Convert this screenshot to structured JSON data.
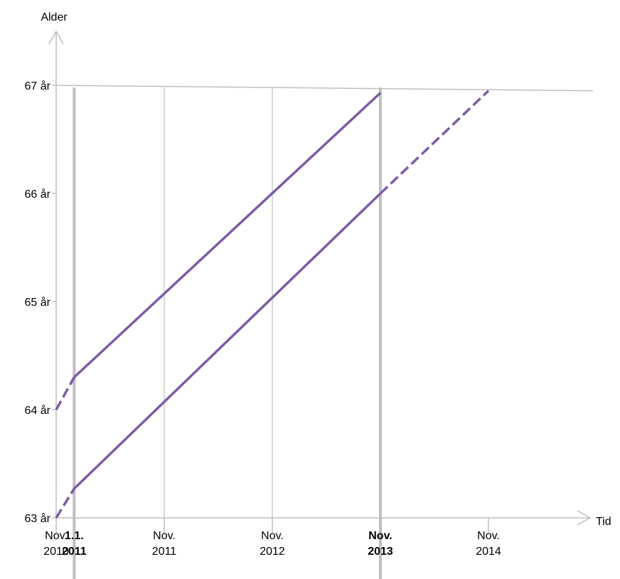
{
  "chart_data": {
    "type": "line",
    "xlabel": "Tid",
    "ylabel": "Alder",
    "y_ticks": [
      {
        "value": 63,
        "label": "63 år"
      },
      {
        "value": 64,
        "label": "64 år"
      },
      {
        "value": 65,
        "label": "65 år"
      },
      {
        "value": 66,
        "label": "66 år"
      },
      {
        "value": 67,
        "label": "67 år"
      }
    ],
    "x_ticks": [
      {
        "date": "2010-11",
        "line1": "Nov.",
        "line2": "2010",
        "bold": false
      },
      {
        "date": "2011-01",
        "line1": "1.1.",
        "line2": "2011",
        "bold": true
      },
      {
        "date": "2011-11",
        "line1": "Nov.",
        "line2": "2011",
        "bold": false
      },
      {
        "date": "2012-11",
        "line1": "Nov.",
        "line2": "2012",
        "bold": false
      },
      {
        "date": "2013-11",
        "line1": "Nov.",
        "line2": "2013",
        "bold": true
      },
      {
        "date": "2014-11",
        "line1": "Nov.",
        "line2": "2014",
        "bold": false
      }
    ],
    "vertical_lines": [
      {
        "date": "2011-01",
        "emphasis": "thick"
      },
      {
        "date": "2011-11",
        "emphasis": "thin"
      },
      {
        "date": "2012-11",
        "emphasis": "thin"
      },
      {
        "date": "2013-11",
        "emphasis": "thick"
      }
    ],
    "reference_line": {
      "y_start": 67,
      "y_end": 66.95
    },
    "series": [
      {
        "color": "#7d5ba6",
        "segments": [
          {
            "style": "dashed",
            "points": [
              [
                "2010-11",
                64.0
              ],
              [
                "2011-01",
                64.3
              ]
            ]
          },
          {
            "style": "solid",
            "points": [
              [
                "2011-01",
                64.3
              ],
              [
                "2013-11",
                66.93
              ]
            ]
          }
        ]
      },
      {
        "color": "#7d5ba6",
        "segments": [
          {
            "style": "dashed",
            "points": [
              [
                "2010-11",
                63.0
              ],
              [
                "2011-01",
                63.27
              ]
            ]
          },
          {
            "style": "solid",
            "points": [
              [
                "2011-01",
                63.27
              ],
              [
                "2013-11",
                66.0
              ]
            ]
          },
          {
            "style": "dashed",
            "points": [
              [
                "2013-11",
                66.0
              ],
              [
                "2014-11",
                66.95
              ]
            ]
          }
        ]
      }
    ],
    "colors": {
      "axis": "#bfbfbf",
      "grid": "#bfbfbf",
      "line": "#7d5ba6"
    }
  }
}
